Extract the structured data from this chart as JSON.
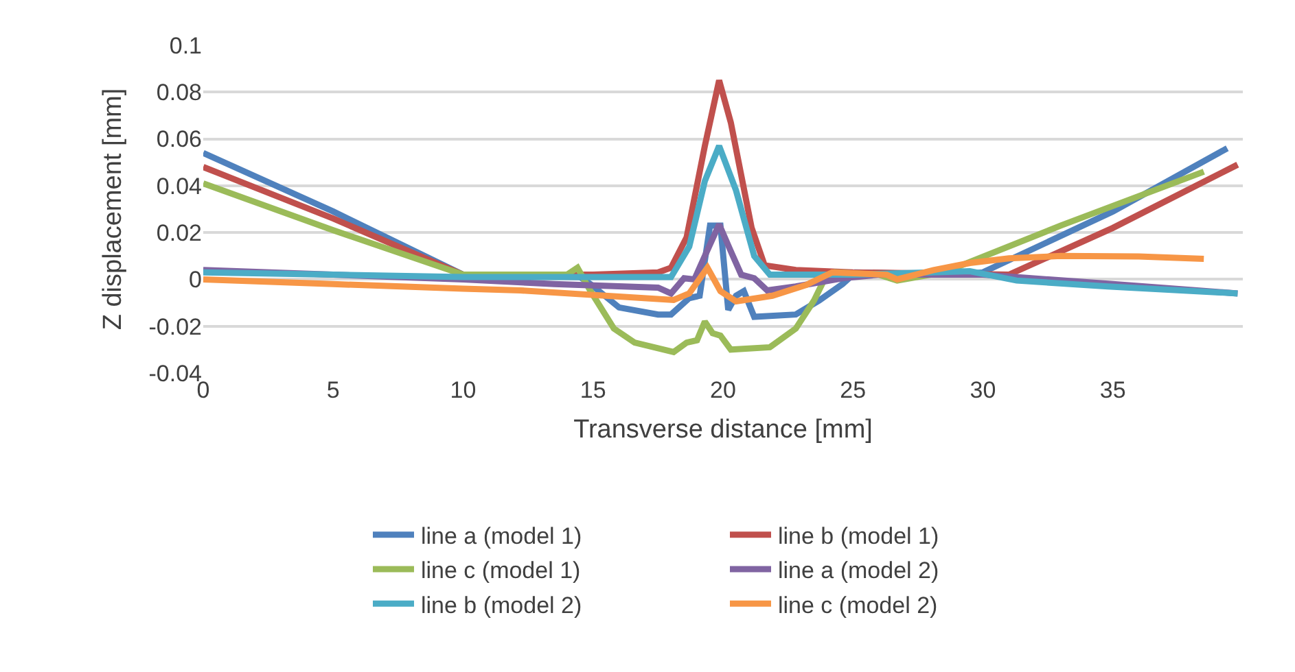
{
  "chart_data": {
    "type": "line",
    "xlabel": "Transverse distance [mm]",
    "ylabel": "Z displacement [mm]",
    "xlim": [
      0,
      40
    ],
    "xticks": [
      0,
      5,
      10,
      15,
      20,
      25,
      30,
      35
    ],
    "ylim": [
      -0.04,
      0.1
    ],
    "yticks": [
      -0.04,
      -0.02,
      0,
      0.02,
      0.04,
      0.06,
      0.08,
      0.1
    ],
    "grid": "y",
    "legend": "bottom",
    "marker": "none",
    "line_style": "solid",
    "series": [
      {
        "name": "line a (model 1)",
        "color": "#4f81bd",
        "x": [
          0,
          5,
          10,
          14.5,
          14.9,
          16,
          17.5,
          18,
          18.7,
          19.1,
          19.5,
          19.9,
          20.2,
          20.5,
          20.8,
          21.2,
          22.8,
          23.7,
          24.6,
          25.1,
          29,
          30,
          35,
          39.4
        ],
        "values": [
          0.054,
          0.029,
          0.002,
          0.001,
          -0.002,
          -0.012,
          -0.015,
          -0.015,
          -0.008,
          -0.007,
          0.023,
          0.023,
          -0.013,
          -0.007,
          -0.005,
          -0.016,
          -0.015,
          -0.009,
          -0.002,
          0.003,
          0.002,
          0.003,
          0.029,
          0.056
        ]
      },
      {
        "name": "line b (model 1)",
        "color": "#c0504d",
        "x": [
          0,
          5,
          10,
          15,
          17.5,
          18,
          18.6,
          19.3,
          19.85,
          20.3,
          21.1,
          21.6,
          22.8,
          25,
          31,
          35,
          39.8
        ],
        "values": [
          0.048,
          0.026,
          0.002,
          0.002,
          0.003,
          0.005,
          0.018,
          0.057,
          0.085,
          0.067,
          0.022,
          0.006,
          0.004,
          0.003,
          0.002,
          0.022,
          0.049
        ]
      },
      {
        "name": "line c (model 1)",
        "color": "#9bbb59",
        "x": [
          0,
          5,
          10,
          14,
          14.4,
          14.9,
          15.8,
          16.6,
          18.1,
          18.6,
          19,
          19.3,
          19.6,
          19.9,
          20.3,
          21.8,
          22.8,
          23.5,
          23.9,
          24.3,
          26,
          26.7,
          28.5,
          33,
          38.5
        ],
        "values": [
          0.041,
          0.021,
          0.002,
          0.002,
          0.005,
          -0.005,
          -0.021,
          -0.027,
          -0.031,
          -0.027,
          -0.026,
          -0.018,
          -0.023,
          -0.024,
          -0.03,
          -0.029,
          -0.021,
          -0.009,
          0,
          0.003,
          0.002,
          -0.0005,
          0.003,
          0.023,
          0.046
        ]
      },
      {
        "name": "line a (model 2)",
        "color": "#8064a2",
        "x": [
          0,
          5,
          10,
          13.5,
          17.5,
          18,
          18.5,
          18.9,
          19.3,
          19.85,
          20.3,
          20.7,
          21.2,
          21.7,
          22.8,
          24.6,
          26,
          30,
          35,
          39.8
        ],
        "values": [
          0.004,
          0.002,
          0,
          -0.002,
          -0.0035,
          -0.006,
          0.0005,
          0,
          0.01,
          0.0235,
          0.012,
          0.002,
          0.0005,
          -0.0047,
          -0.003,
          0.0005,
          0.002,
          0.002,
          -0.002,
          -0.006
        ]
      },
      {
        "name": "line b (model 2)",
        "color": "#4bacc6",
        "x": [
          0,
          5,
          10,
          15,
          18,
          18.7,
          19.3,
          19.85,
          20.5,
          21.2,
          21.8,
          25,
          29.5,
          31.3,
          34.8,
          39.8
        ],
        "values": [
          0.003,
          0.002,
          0.001,
          0.001,
          0.001,
          0.014,
          0.042,
          0.057,
          0.038,
          0.01,
          0.002,
          0.002,
          0.0035,
          -0.0005,
          -0.003,
          -0.006
        ]
      },
      {
        "name": "line c (model 2)",
        "color": "#f79646",
        "x": [
          0,
          5,
          10,
          12.2,
          18.1,
          18.7,
          19.4,
          19.9,
          20.5,
          21.9,
          23.2,
          24.2,
          26.3,
          26.7,
          28.1,
          29.5,
          31,
          33,
          36,
          38.5
        ],
        "values": [
          0,
          -0.002,
          -0.004,
          -0.0047,
          -0.0088,
          -0.006,
          0.005,
          -0.005,
          -0.0094,
          -0.007,
          -0.0024,
          0.003,
          0.002,
          0,
          0.004,
          0.007,
          0.009,
          0.01,
          0.0098,
          0.0088
        ]
      }
    ]
  }
}
